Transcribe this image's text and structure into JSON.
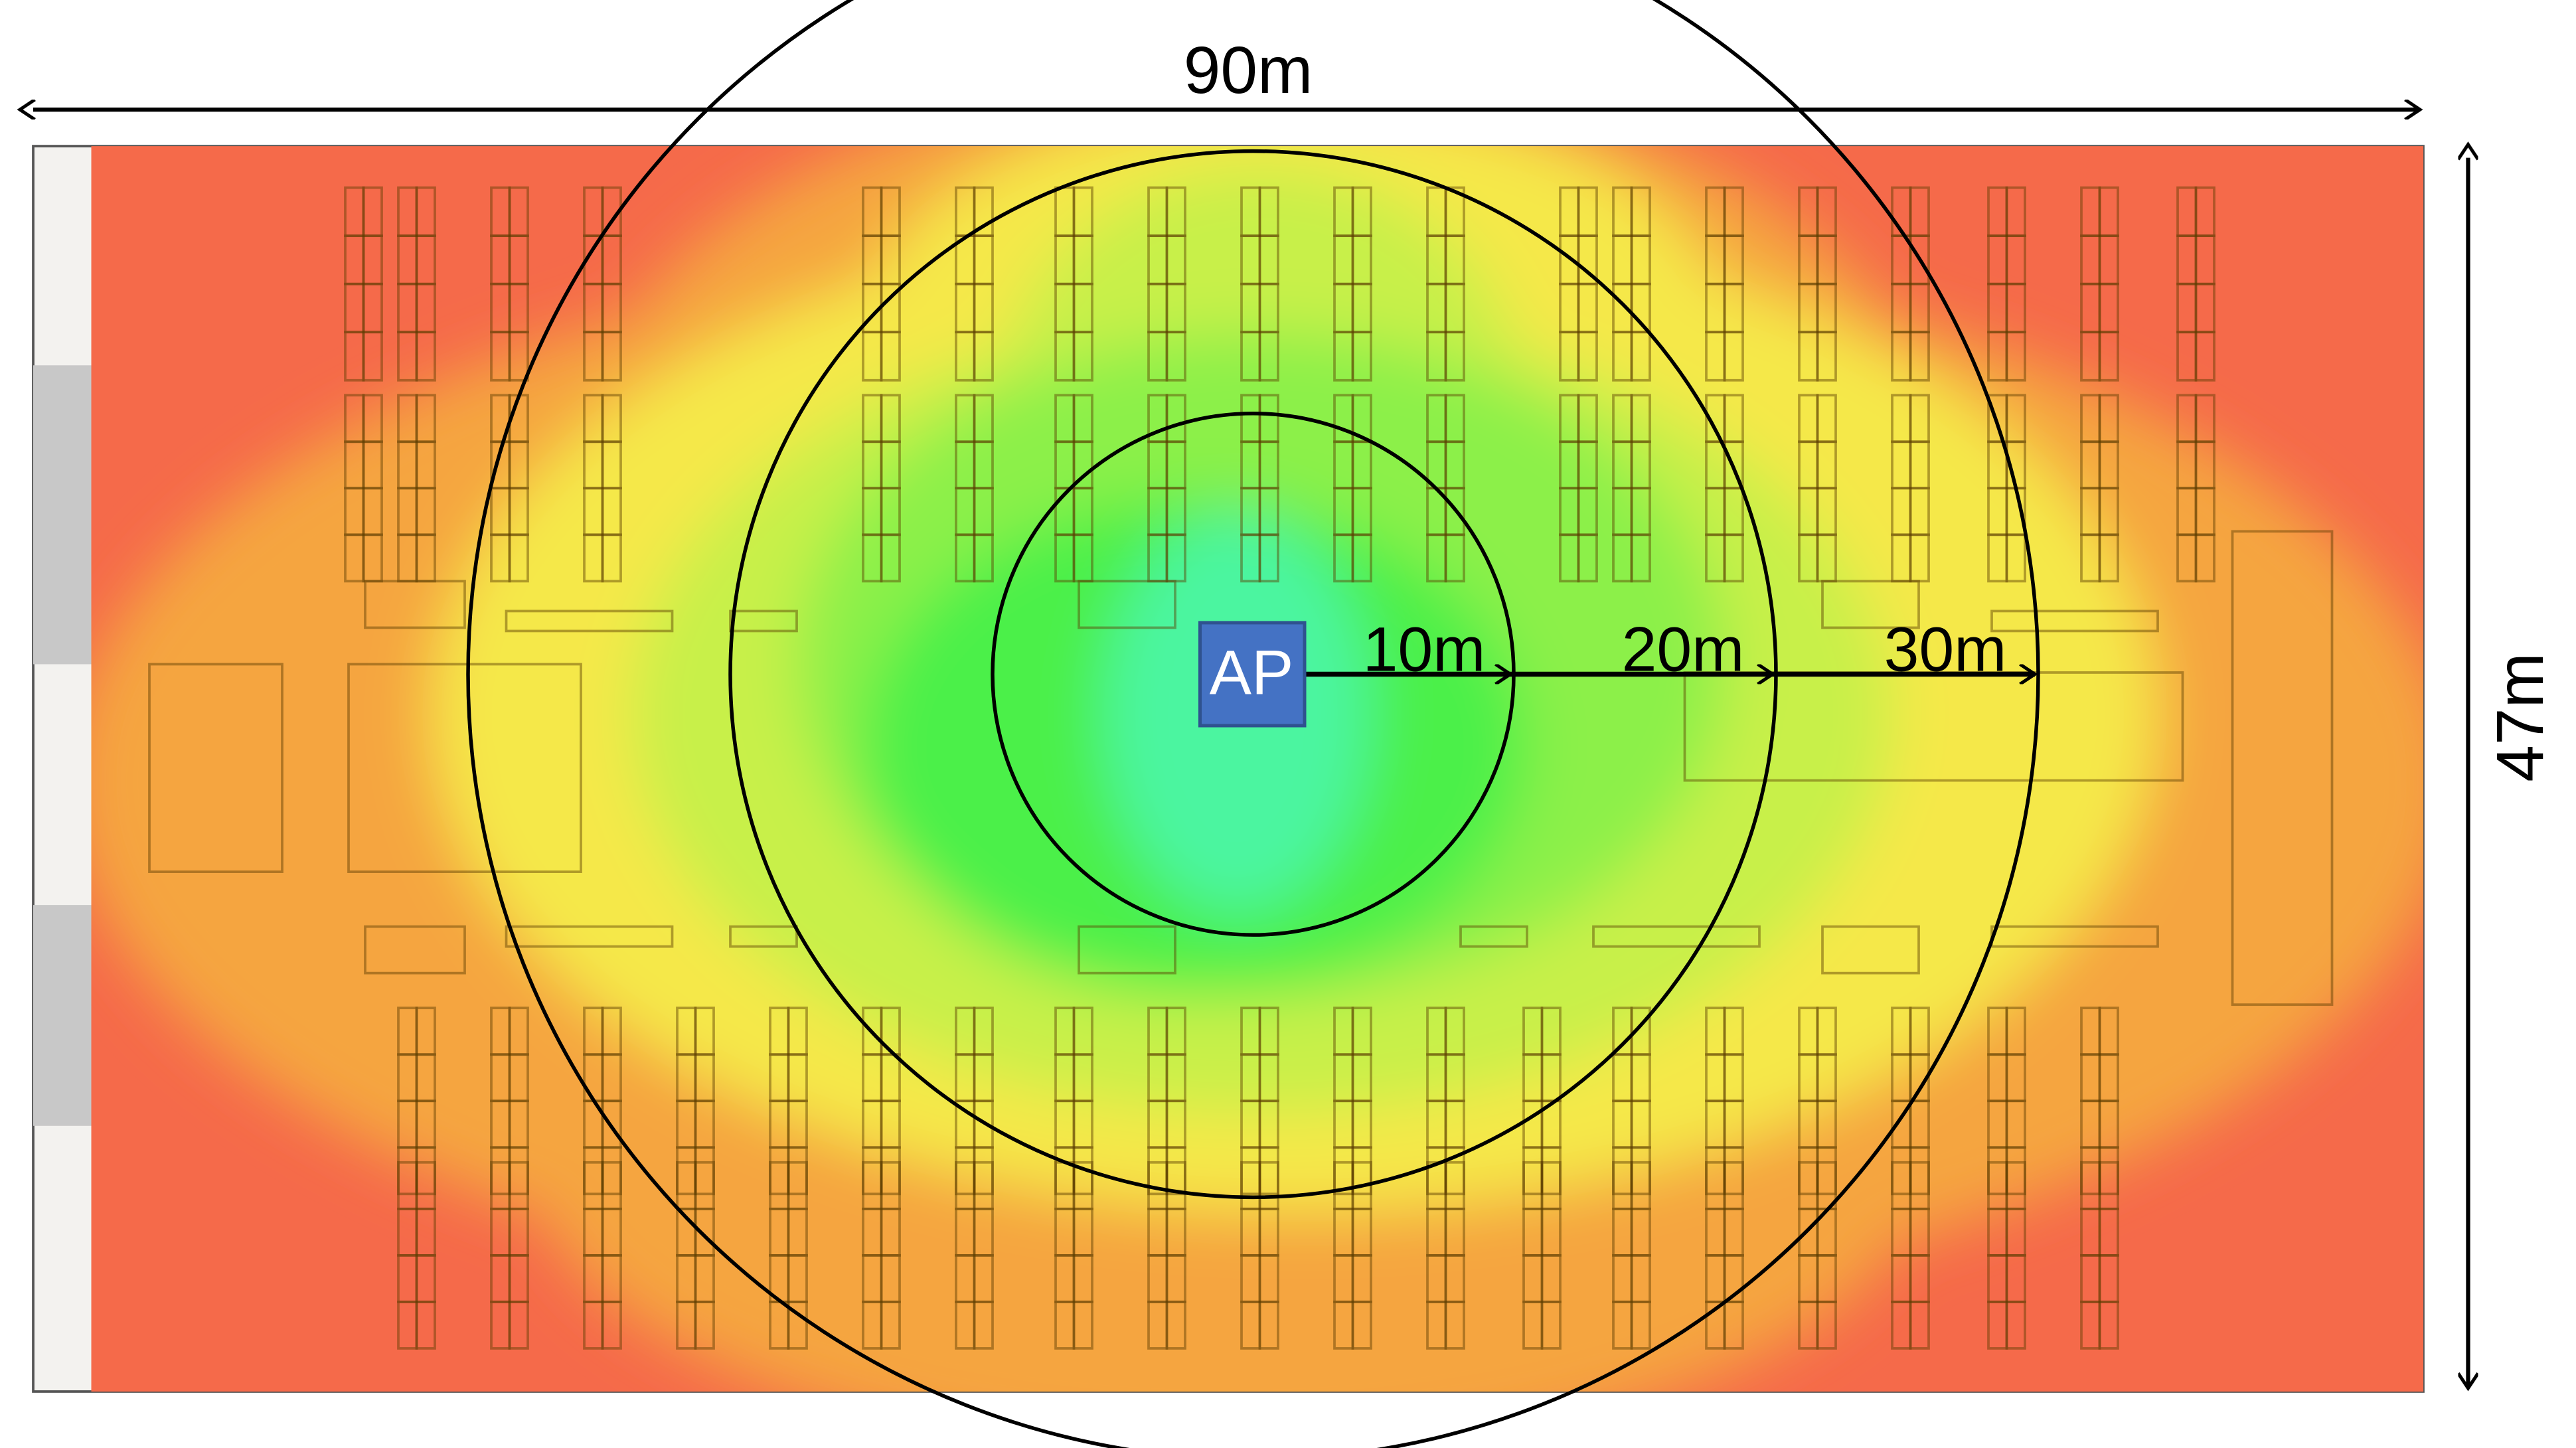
{
  "diagram": {
    "width_label": "90m",
    "height_label": "47m",
    "access_point_label": "AP",
    "radius_labels": [
      "10m",
      "20m",
      "30m"
    ],
    "colors": {
      "strong_signal": "#4cf5a0",
      "good_signal": "#4cf04a",
      "medium_signal": "#8cf04a",
      "fair_signal": "#c8f04a",
      "weak_signal": "#f5e84a",
      "poor_signal": "#f5a540",
      "very_poor_signal": "#f56a4a",
      "access_point": "#4472c4",
      "wall_gray": "#c8c8c8"
    }
  }
}
